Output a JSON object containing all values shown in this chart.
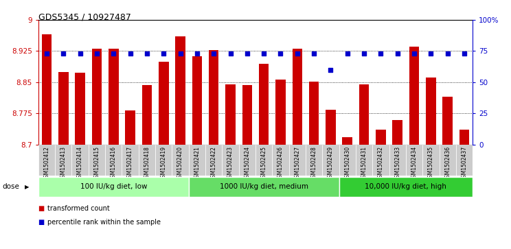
{
  "title": "GDS5345 / 10927487",
  "samples": [
    "GSM1502412",
    "GSM1502413",
    "GSM1502414",
    "GSM1502415",
    "GSM1502416",
    "GSM1502417",
    "GSM1502418",
    "GSM1502419",
    "GSM1502420",
    "GSM1502421",
    "GSM1502422",
    "GSM1502423",
    "GSM1502424",
    "GSM1502425",
    "GSM1502426",
    "GSM1502427",
    "GSM1502428",
    "GSM1502429",
    "GSM1502430",
    "GSM1502431",
    "GSM1502432",
    "GSM1502433",
    "GSM1502434",
    "GSM1502435",
    "GSM1502436",
    "GSM1502437"
  ],
  "bar_values": [
    8.965,
    8.875,
    8.873,
    8.93,
    8.93,
    8.782,
    8.843,
    8.9,
    8.96,
    8.912,
    8.927,
    8.844,
    8.843,
    8.895,
    8.857,
    8.93,
    8.851,
    8.783,
    8.718,
    8.844,
    8.735,
    8.758,
    8.935,
    8.861,
    8.815,
    8.735
  ],
  "percentile_values": [
    73,
    73,
    73,
    73,
    73,
    73,
    73,
    73,
    73,
    73,
    73,
    73,
    73,
    73,
    73,
    73,
    73,
    60,
    73,
    73,
    73,
    73,
    73,
    73,
    73,
    73
  ],
  "bar_color": "#cc0000",
  "dot_color": "#0000cc",
  "ylim_left": [
    8.7,
    9.0
  ],
  "ylim_right": [
    0,
    100
  ],
  "yticks_left": [
    8.7,
    8.775,
    8.85,
    8.925,
    9.0
  ],
  "yticks_right": [
    0,
    25,
    50,
    75,
    100
  ],
  "ytick_labels_left": [
    "8.7",
    "8.775",
    "8.85",
    "8.925",
    "9"
  ],
  "ytick_labels_right": [
    "0",
    "25",
    "50",
    "75",
    "100%"
  ],
  "groups": [
    {
      "label": "100 IU/kg diet, low",
      "start": 0,
      "end": 8,
      "color": "#aaffaa"
    },
    {
      "label": "1000 IU/kg diet, medium",
      "start": 9,
      "end": 17,
      "color": "#66dd66"
    },
    {
      "label": "10,000 IU/kg diet, high",
      "start": 18,
      "end": 25,
      "color": "#33cc33"
    }
  ],
  "dose_label": "dose",
  "legend_bar_label": "transformed count",
  "legend_dot_label": "percentile rank within the sample",
  "bar_width": 0.6,
  "xlim": [
    -0.5,
    25.5
  ]
}
